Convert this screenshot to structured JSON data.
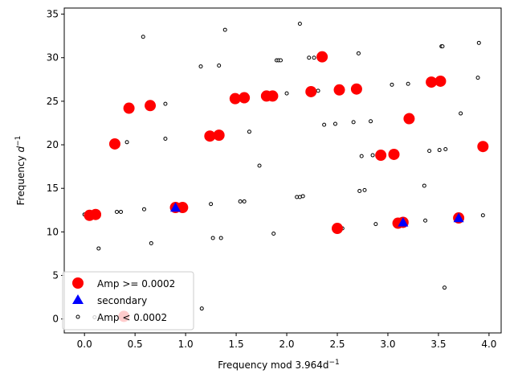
{
  "chart_data": {
    "type": "scatter",
    "xlabel": "Frequency mod 3.964",
    "xlabel_unit": "d",
    "xlabel_exp": "−1",
    "ylabel": "Frequency ",
    "ylabel_unit": "d",
    "ylabel_exp": "−1",
    "xlim": [
      -0.2,
      4.12
    ],
    "ylim": [
      -1.6,
      35.7
    ],
    "xticks": [
      "0.0",
      "0.5",
      "1.0",
      "1.5",
      "2.0",
      "2.5",
      "3.0",
      "3.5",
      "4.0"
    ],
    "yticks": [
      "0",
      "5",
      "10",
      "15",
      "20",
      "25",
      "30",
      "35"
    ],
    "legend_position": "lower-left",
    "series": [
      {
        "name": "Amp >= 0.0002",
        "marker": "circle-filled",
        "color": "#ff0000",
        "points": [
          [
            0.05,
            11.9
          ],
          [
            0.11,
            12.0
          ],
          [
            0.39,
            0.3
          ],
          [
            0.3,
            20.1
          ],
          [
            0.44,
            24.2
          ],
          [
            0.65,
            24.5
          ],
          [
            0.9,
            12.8
          ],
          [
            0.97,
            12.8
          ],
          [
            1.24,
            21.0
          ],
          [
            1.33,
            21.1
          ],
          [
            1.49,
            25.3
          ],
          [
            1.58,
            25.4
          ],
          [
            1.8,
            25.6
          ],
          [
            1.86,
            25.6
          ],
          [
            2.24,
            26.1
          ],
          [
            2.35,
            30.1
          ],
          [
            2.5,
            10.4
          ],
          [
            2.52,
            26.3
          ],
          [
            2.69,
            26.4
          ],
          [
            2.93,
            18.8
          ],
          [
            3.06,
            18.9
          ],
          [
            3.1,
            11.0
          ],
          [
            3.15,
            11.1
          ],
          [
            3.21,
            23.0
          ],
          [
            3.43,
            27.2
          ],
          [
            3.52,
            27.3
          ],
          [
            3.7,
            11.6
          ],
          [
            3.94,
            19.8
          ]
        ]
      },
      {
        "name": "secondary",
        "marker": "triangle-filled",
        "color": "#0000ff",
        "points": [
          [
            0.9,
            12.8
          ],
          [
            3.15,
            11.1
          ],
          [
            3.7,
            11.6
          ]
        ]
      },
      {
        "name": "Amp < 0.0002",
        "marker": "circle-open",
        "color": "#000000",
        "points": [
          [
            0.0,
            12.0
          ],
          [
            0.14,
            8.1
          ],
          [
            0.1,
            0.2
          ],
          [
            0.32,
            12.3
          ],
          [
            0.36,
            12.3
          ],
          [
            0.42,
            20.3
          ],
          [
            0.58,
            32.4
          ],
          [
            0.59,
            12.6
          ],
          [
            0.66,
            8.7
          ],
          [
            0.8,
            24.7
          ],
          [
            0.8,
            20.7
          ],
          [
            1.16,
            1.2
          ],
          [
            1.15,
            29.0
          ],
          [
            1.25,
            13.2
          ],
          [
            1.27,
            9.3
          ],
          [
            1.33,
            29.1
          ],
          [
            1.35,
            9.3
          ],
          [
            1.39,
            33.2
          ],
          [
            1.54,
            13.5
          ],
          [
            1.58,
            13.5
          ],
          [
            1.63,
            21.5
          ],
          [
            1.73,
            17.6
          ],
          [
            1.87,
            9.8
          ],
          [
            1.9,
            29.7
          ],
          [
            1.92,
            29.7
          ],
          [
            1.94,
            29.7
          ],
          [
            2.0,
            25.9
          ],
          [
            2.1,
            14.0
          ],
          [
            2.13,
            14.0
          ],
          [
            2.16,
            14.1
          ],
          [
            2.13,
            33.9
          ],
          [
            2.22,
            30.0
          ],
          [
            2.27,
            30.0
          ],
          [
            2.31,
            26.2
          ],
          [
            2.37,
            22.3
          ],
          [
            2.48,
            22.4
          ],
          [
            2.55,
            10.4
          ],
          [
            2.66,
            22.6
          ],
          [
            2.71,
            30.5
          ],
          [
            2.72,
            14.7
          ],
          [
            2.74,
            18.7
          ],
          [
            2.77,
            14.8
          ],
          [
            2.83,
            22.7
          ],
          [
            2.88,
            10.9
          ],
          [
            2.85,
            18.8
          ],
          [
            3.04,
            26.9
          ],
          [
            3.2,
            27.0
          ],
          [
            3.36,
            15.3
          ],
          [
            3.37,
            11.3
          ],
          [
            3.41,
            19.3
          ],
          [
            3.51,
            19.4
          ],
          [
            3.53,
            31.3
          ],
          [
            3.54,
            31.3
          ],
          [
            3.56,
            3.6
          ],
          [
            3.57,
            19.5
          ],
          [
            3.72,
            23.6
          ],
          [
            3.89,
            27.7
          ],
          [
            3.9,
            31.7
          ],
          [
            3.94,
            11.9
          ]
        ]
      }
    ]
  }
}
